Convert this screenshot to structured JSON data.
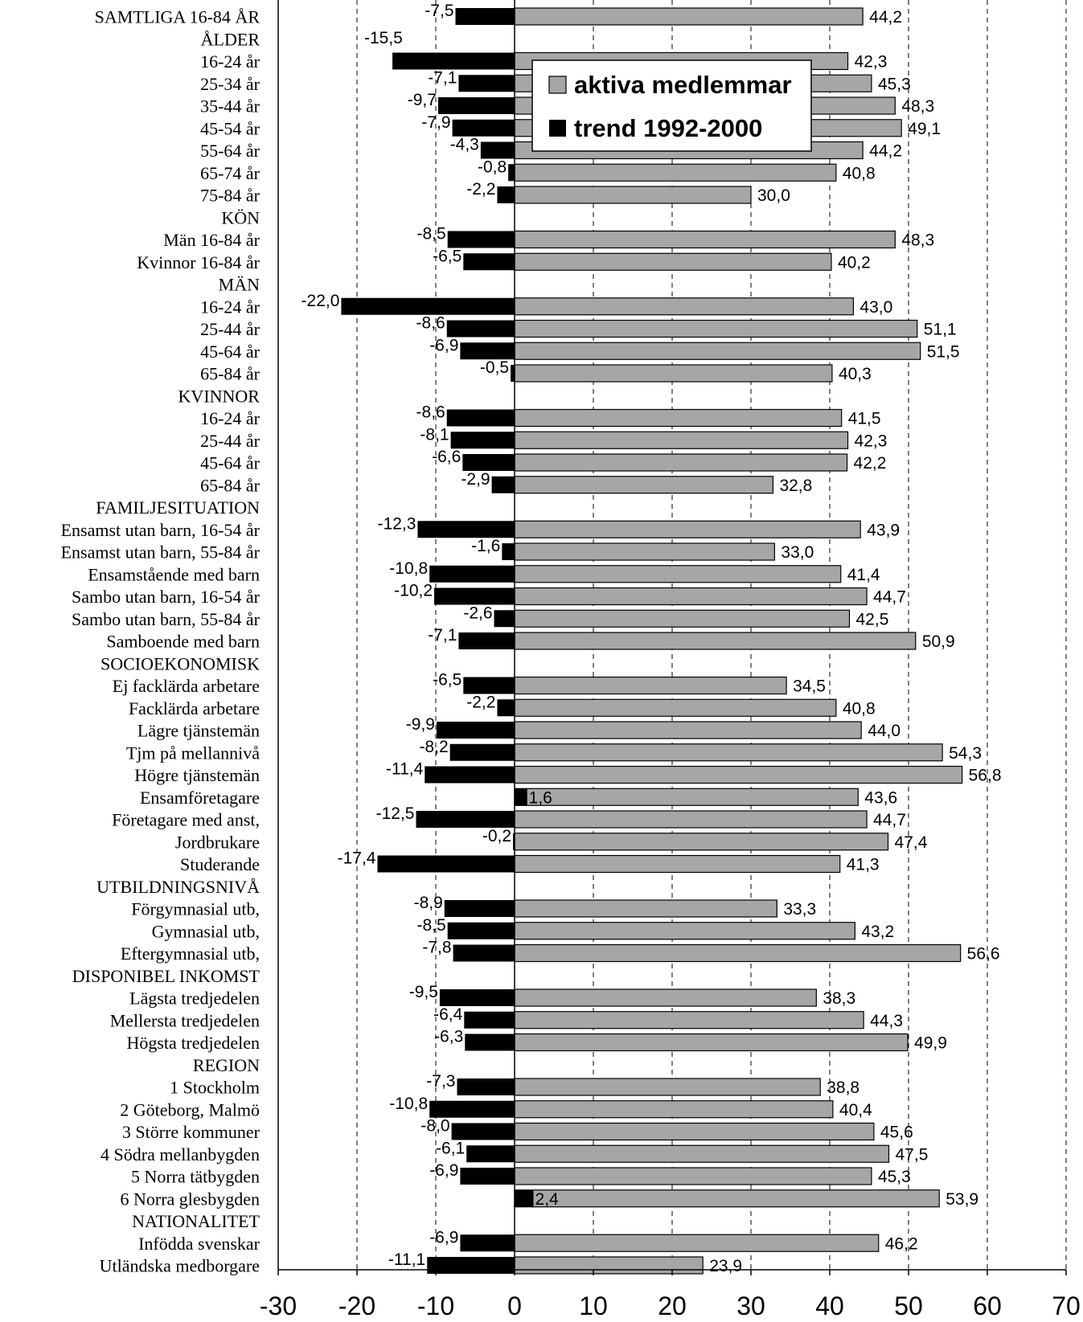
{
  "chart_data": {
    "type": "bar",
    "orientation": "horizontal",
    "xlim": [
      -30,
      70
    ],
    "x_ticks": [
      "-30",
      "-20",
      "-10",
      "0",
      "10",
      "20",
      "30",
      "40",
      "50",
      "60",
      "70"
    ],
    "grid": "vertical dashed",
    "legend_position": "top-center",
    "colors": {
      "aktiva medlemmar": "#a6a6a6",
      "trend 1992-2000": "#000000"
    },
    "series": [
      {
        "name": "aktiva medlemmar"
      },
      {
        "name": "trend 1992-2000"
      }
    ],
    "rows": [
      {
        "label": "SAMTLIGA 16-84 ÅR",
        "aktiva": 44.2,
        "aktiva_label": "44,2",
        "trend": -7.5,
        "trend_label": "-7,5"
      },
      {
        "label": "ÅLDER",
        "aktiva": null,
        "aktiva_label": "",
        "trend": null,
        "trend_label": "-15,5"
      },
      {
        "label": "16-24 år",
        "aktiva": 42.3,
        "aktiva_label": "42,3",
        "trend": -15.5,
        "trend_label": ""
      },
      {
        "label": "25-34 år",
        "aktiva": 45.3,
        "aktiva_label": "45,3",
        "trend": -7.1,
        "trend_label": "-7,1"
      },
      {
        "label": "35-44 år",
        "aktiva": 48.3,
        "aktiva_label": "48,3",
        "trend": -9.7,
        "trend_label": "-9,7"
      },
      {
        "label": "45-54 år",
        "aktiva": 49.1,
        "aktiva_label": "49,1",
        "trend": -7.9,
        "trend_label": "-7,9"
      },
      {
        "label": "55-64 år",
        "aktiva": 44.2,
        "aktiva_label": "44,2",
        "trend": -4.3,
        "trend_label": "-4,3"
      },
      {
        "label": "65-74 år",
        "aktiva": 40.8,
        "aktiva_label": "40,8",
        "trend": -0.8,
        "trend_label": "-0,8"
      },
      {
        "label": "75-84 år",
        "aktiva": 30.0,
        "aktiva_label": "30,0",
        "trend": -2.2,
        "trend_label": "-2,2"
      },
      {
        "label": "KÖN",
        "aktiva": null,
        "aktiva_label": "",
        "trend": null,
        "trend_label": ""
      },
      {
        "label": "Män 16-84 år",
        "aktiva": 48.3,
        "aktiva_label": "48,3",
        "trend": -8.5,
        "trend_label": "-8,5"
      },
      {
        "label": "Kvinnor 16-84 år",
        "aktiva": 40.2,
        "aktiva_label": "40,2",
        "trend": -6.5,
        "trend_label": "-6,5"
      },
      {
        "label": "MÄN",
        "aktiva": null,
        "aktiva_label": "",
        "trend": null,
        "trend_label": ""
      },
      {
        "label": "16-24 år",
        "aktiva": 43.0,
        "aktiva_label": "43,0",
        "trend": -22.0,
        "trend_label": "-22,0"
      },
      {
        "label": "25-44 år",
        "aktiva": 51.1,
        "aktiva_label": "51,1",
        "trend": -8.6,
        "trend_label": "-8,6"
      },
      {
        "label": "45-64 år",
        "aktiva": 51.5,
        "aktiva_label": "51,5",
        "trend": -6.9,
        "trend_label": "-6,9"
      },
      {
        "label": "65-84 år",
        "aktiva": 40.3,
        "aktiva_label": "40,3",
        "trend": -0.5,
        "trend_label": "-0,5"
      },
      {
        "label": "KVINNOR",
        "aktiva": null,
        "aktiva_label": "",
        "trend": null,
        "trend_label": ""
      },
      {
        "label": "16-24 år",
        "aktiva": 41.5,
        "aktiva_label": "41,5",
        "trend": -8.6,
        "trend_label": "-8,6"
      },
      {
        "label": "25-44 år",
        "aktiva": 42.3,
        "aktiva_label": "42,3",
        "trend": -8.1,
        "trend_label": "-8,1"
      },
      {
        "label": "45-64 år",
        "aktiva": 42.2,
        "aktiva_label": "42,2",
        "trend": -6.6,
        "trend_label": "-6,6"
      },
      {
        "label": "65-84 år",
        "aktiva": 32.8,
        "aktiva_label": "32,8",
        "trend": -2.9,
        "trend_label": "-2,9"
      },
      {
        "label": "FAMILJESITUATION",
        "aktiva": null,
        "aktiva_label": "",
        "trend": null,
        "trend_label": ""
      },
      {
        "label": "Ensamst utan barn, 16-54 år",
        "aktiva": 43.9,
        "aktiva_label": "43,9",
        "trend": -12.3,
        "trend_label": "-12,3"
      },
      {
        "label": "Ensamst utan barn, 55-84 år",
        "aktiva": 33.0,
        "aktiva_label": "33,0",
        "trend": -1.6,
        "trend_label": "-1,6"
      },
      {
        "label": "Ensamstående med barn",
        "aktiva": 41.4,
        "aktiva_label": "41,4",
        "trend": -10.8,
        "trend_label": "-10,8"
      },
      {
        "label": "Sambo utan barn, 16-54 år",
        "aktiva": 44.7,
        "aktiva_label": "44,7",
        "trend": -10.2,
        "trend_label": "-10,2"
      },
      {
        "label": "Sambo utan barn, 55-84 år",
        "aktiva": 42.5,
        "aktiva_label": "42,5",
        "trend": -2.6,
        "trend_label": "-2,6"
      },
      {
        "label": "Samboende med barn",
        "aktiva": 50.9,
        "aktiva_label": "50,9",
        "trend": -7.1,
        "trend_label": "-7,1"
      },
      {
        "label": "SOCIOEKONOMISK",
        "aktiva": null,
        "aktiva_label": "",
        "trend": null,
        "trend_label": ""
      },
      {
        "label": "Ej facklärda arbetare",
        "aktiva": 34.5,
        "aktiva_label": "34,5",
        "trend": -6.5,
        "trend_label": "-6,5"
      },
      {
        "label": "Facklärda arbetare",
        "aktiva": 40.8,
        "aktiva_label": "40,8",
        "trend": -2.2,
        "trend_label": "-2,2"
      },
      {
        "label": "Lägre tjänstemän",
        "aktiva": 44.0,
        "aktiva_label": "44,0",
        "trend": -9.9,
        "trend_label": "-9,9"
      },
      {
        "label": "Tjm på mellannivå",
        "aktiva": 54.3,
        "aktiva_label": "54,3",
        "trend": -8.2,
        "trend_label": "-8,2"
      },
      {
        "label": "Högre tjänstemän",
        "aktiva": 56.8,
        "aktiva_label": "56,8",
        "trend": -11.4,
        "trend_label": "-11,4"
      },
      {
        "label": "Ensamföretagare",
        "aktiva": 43.6,
        "aktiva_label": "43,6",
        "trend": 1.6,
        "trend_label": "1,6"
      },
      {
        "label": "Företagare med anst,",
        "aktiva": 44.7,
        "aktiva_label": "44,7",
        "trend": -12.5,
        "trend_label": "-12,5"
      },
      {
        "label": "Jordbrukare",
        "aktiva": 47.4,
        "aktiva_label": "47,4",
        "trend": -0.2,
        "trend_label": "-0,2"
      },
      {
        "label": "Studerande",
        "aktiva": 41.3,
        "aktiva_label": "41,3",
        "trend": -17.4,
        "trend_label": "-17,4"
      },
      {
        "label": "UTBILDNINGSNIVÅ",
        "aktiva": null,
        "aktiva_label": "",
        "trend": null,
        "trend_label": ""
      },
      {
        "label": "Förgymnasial utb,",
        "aktiva": 33.3,
        "aktiva_label": "33,3",
        "trend": -8.9,
        "trend_label": "-8,9"
      },
      {
        "label": "Gymnasial utb,",
        "aktiva": 43.2,
        "aktiva_label": "43,2",
        "trend": -8.5,
        "trend_label": "-8,5"
      },
      {
        "label": "Eftergymnasial utb,",
        "aktiva": 56.6,
        "aktiva_label": "56,6",
        "trend": -7.8,
        "trend_label": "-7,8"
      },
      {
        "label": "DISPONIBEL INKOMST",
        "aktiva": null,
        "aktiva_label": "",
        "trend": null,
        "trend_label": ""
      },
      {
        "label": "Lägsta tredjedelen",
        "aktiva": 38.3,
        "aktiva_label": "38,3",
        "trend": -9.5,
        "trend_label": "-9,5"
      },
      {
        "label": "Mellersta tredjedelen",
        "aktiva": 44.3,
        "aktiva_label": "44,3",
        "trend": -6.4,
        "trend_label": "-6,4"
      },
      {
        "label": "Högsta tredjedelen",
        "aktiva": 49.9,
        "aktiva_label": "49,9",
        "trend": -6.3,
        "trend_label": "-6,3"
      },
      {
        "label": "REGION",
        "aktiva": null,
        "aktiva_label": "",
        "trend": null,
        "trend_label": ""
      },
      {
        "label": "1 Stockholm",
        "aktiva": 38.8,
        "aktiva_label": "38,8",
        "trend": -7.3,
        "trend_label": "-7,3"
      },
      {
        "label": "2 Göteborg, Malmö",
        "aktiva": 40.4,
        "aktiva_label": "40,4",
        "trend": -10.8,
        "trend_label": "-10,8"
      },
      {
        "label": "3 Större kommuner",
        "aktiva": 45.6,
        "aktiva_label": "45,6",
        "trend": -8.0,
        "trend_label": "-8,0"
      },
      {
        "label": "4 Södra mellanbygden",
        "aktiva": 47.5,
        "aktiva_label": "47,5",
        "trend": -6.1,
        "trend_label": "-6,1"
      },
      {
        "label": "5 Norra tätbygden",
        "aktiva": 45.3,
        "aktiva_label": "45,3",
        "trend": -6.9,
        "trend_label": "-6,9"
      },
      {
        "label": "6 Norra glesbygden",
        "aktiva": 53.9,
        "aktiva_label": "53,9",
        "trend": 2.4,
        "trend_label": "2,4"
      },
      {
        "label": "NATIONALITET",
        "aktiva": null,
        "aktiva_label": "",
        "trend": null,
        "trend_label": ""
      },
      {
        "label": "Infödda svenskar",
        "aktiva": 46.2,
        "aktiva_label": "46,2",
        "trend": -6.9,
        "trend_label": "-6,9"
      },
      {
        "label": "Utländska medborgare",
        "aktiva": 23.9,
        "aktiva_label": "23,9",
        "trend": -11.1,
        "trend_label": "-11,1"
      }
    ]
  }
}
